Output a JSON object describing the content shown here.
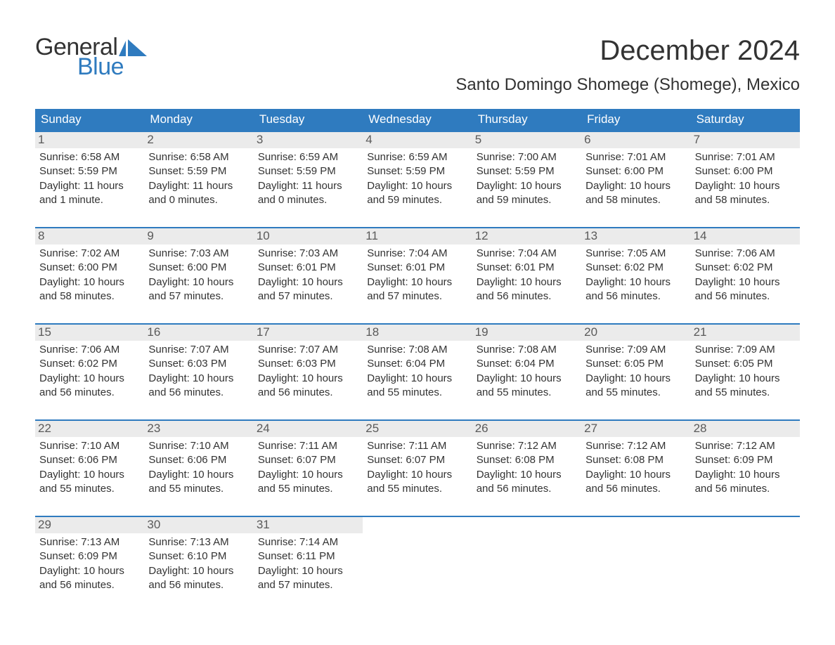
{
  "brand": {
    "part1": "General",
    "part2": "Blue",
    "color1": "#333333",
    "color2": "#2f7bbf"
  },
  "title": "December 2024",
  "location": "Santo Domingo Shomege (Shomege), Mexico",
  "colors": {
    "header_bg": "#2f7bbf",
    "header_text": "#ffffff",
    "daynum_bg": "#ebebeb",
    "daynum_text": "#5a5a5a",
    "body_text": "#333333",
    "row_border": "#2f7bbf",
    "page_bg": "#ffffff"
  },
  "weekdays": [
    "Sunday",
    "Monday",
    "Tuesday",
    "Wednesday",
    "Thursday",
    "Friday",
    "Saturday"
  ],
  "weeks": [
    [
      {
        "n": "1",
        "sunrise": "Sunrise: 6:58 AM",
        "sunset": "Sunset: 5:59 PM",
        "day1": "Daylight: 11 hours",
        "day2": "and 1 minute."
      },
      {
        "n": "2",
        "sunrise": "Sunrise: 6:58 AM",
        "sunset": "Sunset: 5:59 PM",
        "day1": "Daylight: 11 hours",
        "day2": "and 0 minutes."
      },
      {
        "n": "3",
        "sunrise": "Sunrise: 6:59 AM",
        "sunset": "Sunset: 5:59 PM",
        "day1": "Daylight: 11 hours",
        "day2": "and 0 minutes."
      },
      {
        "n": "4",
        "sunrise": "Sunrise: 6:59 AM",
        "sunset": "Sunset: 5:59 PM",
        "day1": "Daylight: 10 hours",
        "day2": "and 59 minutes."
      },
      {
        "n": "5",
        "sunrise": "Sunrise: 7:00 AM",
        "sunset": "Sunset: 5:59 PM",
        "day1": "Daylight: 10 hours",
        "day2": "and 59 minutes."
      },
      {
        "n": "6",
        "sunrise": "Sunrise: 7:01 AM",
        "sunset": "Sunset: 6:00 PM",
        "day1": "Daylight: 10 hours",
        "day2": "and 58 minutes."
      },
      {
        "n": "7",
        "sunrise": "Sunrise: 7:01 AM",
        "sunset": "Sunset: 6:00 PM",
        "day1": "Daylight: 10 hours",
        "day2": "and 58 minutes."
      }
    ],
    [
      {
        "n": "8",
        "sunrise": "Sunrise: 7:02 AM",
        "sunset": "Sunset: 6:00 PM",
        "day1": "Daylight: 10 hours",
        "day2": "and 58 minutes."
      },
      {
        "n": "9",
        "sunrise": "Sunrise: 7:03 AM",
        "sunset": "Sunset: 6:00 PM",
        "day1": "Daylight: 10 hours",
        "day2": "and 57 minutes."
      },
      {
        "n": "10",
        "sunrise": "Sunrise: 7:03 AM",
        "sunset": "Sunset: 6:01 PM",
        "day1": "Daylight: 10 hours",
        "day2": "and 57 minutes."
      },
      {
        "n": "11",
        "sunrise": "Sunrise: 7:04 AM",
        "sunset": "Sunset: 6:01 PM",
        "day1": "Daylight: 10 hours",
        "day2": "and 57 minutes."
      },
      {
        "n": "12",
        "sunrise": "Sunrise: 7:04 AM",
        "sunset": "Sunset: 6:01 PM",
        "day1": "Daylight: 10 hours",
        "day2": "and 56 minutes."
      },
      {
        "n": "13",
        "sunrise": "Sunrise: 7:05 AM",
        "sunset": "Sunset: 6:02 PM",
        "day1": "Daylight: 10 hours",
        "day2": "and 56 minutes."
      },
      {
        "n": "14",
        "sunrise": "Sunrise: 7:06 AM",
        "sunset": "Sunset: 6:02 PM",
        "day1": "Daylight: 10 hours",
        "day2": "and 56 minutes."
      }
    ],
    [
      {
        "n": "15",
        "sunrise": "Sunrise: 7:06 AM",
        "sunset": "Sunset: 6:02 PM",
        "day1": "Daylight: 10 hours",
        "day2": "and 56 minutes."
      },
      {
        "n": "16",
        "sunrise": "Sunrise: 7:07 AM",
        "sunset": "Sunset: 6:03 PM",
        "day1": "Daylight: 10 hours",
        "day2": "and 56 minutes."
      },
      {
        "n": "17",
        "sunrise": "Sunrise: 7:07 AM",
        "sunset": "Sunset: 6:03 PM",
        "day1": "Daylight: 10 hours",
        "day2": "and 56 minutes."
      },
      {
        "n": "18",
        "sunrise": "Sunrise: 7:08 AM",
        "sunset": "Sunset: 6:04 PM",
        "day1": "Daylight: 10 hours",
        "day2": "and 55 minutes."
      },
      {
        "n": "19",
        "sunrise": "Sunrise: 7:08 AM",
        "sunset": "Sunset: 6:04 PM",
        "day1": "Daylight: 10 hours",
        "day2": "and 55 minutes."
      },
      {
        "n": "20",
        "sunrise": "Sunrise: 7:09 AM",
        "sunset": "Sunset: 6:05 PM",
        "day1": "Daylight: 10 hours",
        "day2": "and 55 minutes."
      },
      {
        "n": "21",
        "sunrise": "Sunrise: 7:09 AM",
        "sunset": "Sunset: 6:05 PM",
        "day1": "Daylight: 10 hours",
        "day2": "and 55 minutes."
      }
    ],
    [
      {
        "n": "22",
        "sunrise": "Sunrise: 7:10 AM",
        "sunset": "Sunset: 6:06 PM",
        "day1": "Daylight: 10 hours",
        "day2": "and 55 minutes."
      },
      {
        "n": "23",
        "sunrise": "Sunrise: 7:10 AM",
        "sunset": "Sunset: 6:06 PM",
        "day1": "Daylight: 10 hours",
        "day2": "and 55 minutes."
      },
      {
        "n": "24",
        "sunrise": "Sunrise: 7:11 AM",
        "sunset": "Sunset: 6:07 PM",
        "day1": "Daylight: 10 hours",
        "day2": "and 55 minutes."
      },
      {
        "n": "25",
        "sunrise": "Sunrise: 7:11 AM",
        "sunset": "Sunset: 6:07 PM",
        "day1": "Daylight: 10 hours",
        "day2": "and 55 minutes."
      },
      {
        "n": "26",
        "sunrise": "Sunrise: 7:12 AM",
        "sunset": "Sunset: 6:08 PM",
        "day1": "Daylight: 10 hours",
        "day2": "and 56 minutes."
      },
      {
        "n": "27",
        "sunrise": "Sunrise: 7:12 AM",
        "sunset": "Sunset: 6:08 PM",
        "day1": "Daylight: 10 hours",
        "day2": "and 56 minutes."
      },
      {
        "n": "28",
        "sunrise": "Sunrise: 7:12 AM",
        "sunset": "Sunset: 6:09 PM",
        "day1": "Daylight: 10 hours",
        "day2": "and 56 minutes."
      }
    ],
    [
      {
        "n": "29",
        "sunrise": "Sunrise: 7:13 AM",
        "sunset": "Sunset: 6:09 PM",
        "day1": "Daylight: 10 hours",
        "day2": "and 56 minutes."
      },
      {
        "n": "30",
        "sunrise": "Sunrise: 7:13 AM",
        "sunset": "Sunset: 6:10 PM",
        "day1": "Daylight: 10 hours",
        "day2": "and 56 minutes."
      },
      {
        "n": "31",
        "sunrise": "Sunrise: 7:14 AM",
        "sunset": "Sunset: 6:11 PM",
        "day1": "Daylight: 10 hours",
        "day2": "and 57 minutes."
      },
      null,
      null,
      null,
      null
    ]
  ]
}
